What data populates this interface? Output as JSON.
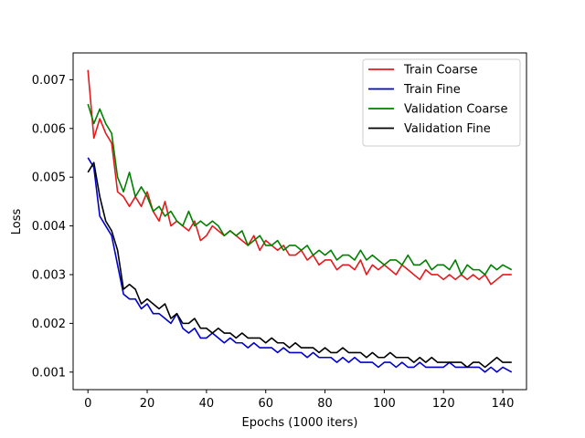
{
  "chart_data": {
    "type": "line",
    "xlabel": "Epochs (1000 iters)",
    "ylabel": "Loss",
    "xlim": [
      -5,
      148
    ],
    "ylim": [
      0.00064,
      0.00755
    ],
    "x_ticks": [
      0,
      20,
      40,
      60,
      80,
      100,
      120,
      140
    ],
    "y_ticks": [
      0.001,
      0.002,
      0.003,
      0.004,
      0.005,
      0.006,
      0.007
    ],
    "x_tick_labels": [
      "0",
      "20",
      "40",
      "60",
      "80",
      "100",
      "120",
      "140"
    ],
    "y_tick_labels": [
      "0.001",
      "0.002",
      "0.003",
      "0.004",
      "0.005",
      "0.006",
      "0.007"
    ],
    "grid": false,
    "legend_position": "top-right",
    "series": [
      {
        "name": "Train Coarse",
        "color": "#e41a1c",
        "x": [
          0,
          2,
          4,
          6,
          8,
          10,
          12,
          14,
          16,
          18,
          20,
          22,
          24,
          26,
          28,
          30,
          32,
          34,
          36,
          38,
          40,
          42,
          44,
          46,
          48,
          50,
          52,
          54,
          56,
          58,
          60,
          62,
          64,
          66,
          68,
          70,
          72,
          74,
          76,
          78,
          80,
          82,
          84,
          86,
          88,
          90,
          92,
          94,
          96,
          98,
          100,
          102,
          104,
          106,
          108,
          110,
          112,
          114,
          116,
          118,
          120,
          122,
          124,
          126,
          128,
          130,
          132,
          134,
          136,
          138,
          140,
          143
        ],
        "y": [
          0.0072,
          0.0058,
          0.0062,
          0.0059,
          0.0057,
          0.0047,
          0.0046,
          0.0044,
          0.0046,
          0.0044,
          0.0047,
          0.0043,
          0.0041,
          0.0045,
          0.004,
          0.0041,
          0.004,
          0.0039,
          0.0041,
          0.0037,
          0.0038,
          0.004,
          0.0039,
          0.0038,
          0.0039,
          0.0038,
          0.0037,
          0.0036,
          0.0038,
          0.0035,
          0.0037,
          0.0036,
          0.0035,
          0.0036,
          0.0034,
          0.0034,
          0.0035,
          0.0033,
          0.0034,
          0.0032,
          0.0033,
          0.0033,
          0.0031,
          0.0032,
          0.0032,
          0.0031,
          0.0033,
          0.003,
          0.0032,
          0.0031,
          0.0032,
          0.0031,
          0.003,
          0.0032,
          0.0031,
          0.003,
          0.0029,
          0.0031,
          0.003,
          0.003,
          0.0029,
          0.003,
          0.0029,
          0.003,
          0.0029,
          0.003,
          0.0029,
          0.003,
          0.0028,
          0.0029,
          0.003,
          0.003
        ]
      },
      {
        "name": "Train Fine",
        "color": "#0000cc",
        "x": [
          0,
          2,
          4,
          6,
          8,
          10,
          12,
          14,
          16,
          18,
          20,
          22,
          24,
          26,
          28,
          30,
          32,
          34,
          36,
          38,
          40,
          42,
          44,
          46,
          48,
          50,
          52,
          54,
          56,
          58,
          60,
          62,
          64,
          66,
          68,
          70,
          72,
          74,
          76,
          78,
          80,
          82,
          84,
          86,
          88,
          90,
          92,
          94,
          96,
          98,
          100,
          102,
          104,
          106,
          108,
          110,
          112,
          114,
          116,
          118,
          120,
          122,
          124,
          126,
          128,
          130,
          132,
          134,
          136,
          138,
          140,
          143
        ],
        "y": [
          0.0054,
          0.0052,
          0.0042,
          0.004,
          0.0038,
          0.0032,
          0.0026,
          0.0025,
          0.0025,
          0.0023,
          0.0024,
          0.0022,
          0.0022,
          0.0021,
          0.002,
          0.0022,
          0.0019,
          0.0018,
          0.0019,
          0.0017,
          0.0017,
          0.0018,
          0.0017,
          0.0016,
          0.0017,
          0.0016,
          0.0016,
          0.0015,
          0.0016,
          0.0015,
          0.0015,
          0.0015,
          0.0014,
          0.0015,
          0.0014,
          0.0014,
          0.0014,
          0.0013,
          0.0014,
          0.0013,
          0.0013,
          0.0013,
          0.0012,
          0.0013,
          0.0012,
          0.0013,
          0.0012,
          0.0012,
          0.0012,
          0.0011,
          0.0012,
          0.0012,
          0.0011,
          0.0012,
          0.0011,
          0.0011,
          0.0012,
          0.0011,
          0.0011,
          0.0011,
          0.0011,
          0.0012,
          0.0011,
          0.0011,
          0.0011,
          0.0011,
          0.0011,
          0.001,
          0.0011,
          0.001,
          0.0011,
          0.001
        ]
      },
      {
        "name": "Validation Coarse",
        "color": "#008000",
        "x": [
          0,
          2,
          4,
          6,
          8,
          10,
          12,
          14,
          16,
          18,
          20,
          22,
          24,
          26,
          28,
          30,
          32,
          34,
          36,
          38,
          40,
          42,
          44,
          46,
          48,
          50,
          52,
          54,
          56,
          58,
          60,
          62,
          64,
          66,
          68,
          70,
          72,
          74,
          76,
          78,
          80,
          82,
          84,
          86,
          88,
          90,
          92,
          94,
          96,
          98,
          100,
          102,
          104,
          106,
          108,
          110,
          112,
          114,
          116,
          118,
          120,
          122,
          124,
          126,
          128,
          130,
          132,
          134,
          136,
          138,
          140,
          143
        ],
        "y": [
          0.0065,
          0.0061,
          0.0064,
          0.0061,
          0.0059,
          0.005,
          0.0047,
          0.0051,
          0.0046,
          0.0048,
          0.0046,
          0.0043,
          0.0044,
          0.0042,
          0.0043,
          0.0041,
          0.004,
          0.0043,
          0.004,
          0.0041,
          0.004,
          0.0041,
          0.004,
          0.0038,
          0.0039,
          0.0038,
          0.0039,
          0.0036,
          0.0037,
          0.0038,
          0.0036,
          0.0036,
          0.0037,
          0.0035,
          0.0036,
          0.0036,
          0.0035,
          0.0036,
          0.0034,
          0.0035,
          0.0034,
          0.0035,
          0.0033,
          0.0034,
          0.0034,
          0.0033,
          0.0035,
          0.0033,
          0.0034,
          0.0033,
          0.0032,
          0.0033,
          0.0033,
          0.0032,
          0.0034,
          0.0032,
          0.0032,
          0.0033,
          0.0031,
          0.0032,
          0.0032,
          0.0031,
          0.0033,
          0.003,
          0.0032,
          0.0031,
          0.0031,
          0.003,
          0.0032,
          0.0031,
          0.0032,
          0.0031
        ]
      },
      {
        "name": "Validation Fine",
        "color": "#000000",
        "x": [
          0,
          2,
          4,
          6,
          8,
          10,
          12,
          14,
          16,
          18,
          20,
          22,
          24,
          26,
          28,
          30,
          32,
          34,
          36,
          38,
          40,
          42,
          44,
          46,
          48,
          50,
          52,
          54,
          56,
          58,
          60,
          62,
          64,
          66,
          68,
          70,
          72,
          74,
          76,
          78,
          80,
          82,
          84,
          86,
          88,
          90,
          92,
          94,
          96,
          98,
          100,
          102,
          104,
          106,
          108,
          110,
          112,
          114,
          116,
          118,
          120,
          122,
          124,
          126,
          128,
          130,
          132,
          134,
          136,
          138,
          140,
          143
        ],
        "y": [
          0.0051,
          0.0053,
          0.0046,
          0.0041,
          0.0039,
          0.0035,
          0.0027,
          0.0028,
          0.0027,
          0.0024,
          0.0025,
          0.0024,
          0.0023,
          0.0024,
          0.0021,
          0.0022,
          0.002,
          0.002,
          0.0021,
          0.0019,
          0.0019,
          0.0018,
          0.0019,
          0.0018,
          0.0018,
          0.0017,
          0.0018,
          0.0017,
          0.0017,
          0.0017,
          0.0016,
          0.0017,
          0.0016,
          0.0016,
          0.0015,
          0.0016,
          0.0015,
          0.0015,
          0.0015,
          0.0014,
          0.0015,
          0.0014,
          0.0014,
          0.0015,
          0.0014,
          0.0014,
          0.0014,
          0.0013,
          0.0014,
          0.0013,
          0.0013,
          0.0014,
          0.0013,
          0.0013,
          0.0013,
          0.0012,
          0.0013,
          0.0012,
          0.0013,
          0.0012,
          0.0012,
          0.0012,
          0.0012,
          0.0012,
          0.0011,
          0.0012,
          0.0012,
          0.0011,
          0.0012,
          0.0013,
          0.0012,
          0.0012
        ]
      }
    ]
  }
}
